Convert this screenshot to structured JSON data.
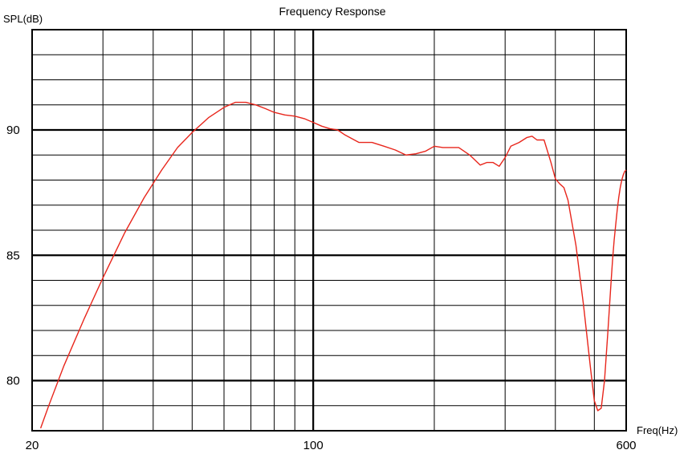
{
  "chart_data": {
    "type": "line",
    "title": "Frequency Response",
    "ylabel": "SPL(dB)",
    "xlabel": "Freq(Hz)",
    "x_scale": "log",
    "xlim": [
      20,
      600
    ],
    "ylim": [
      78,
      94
    ],
    "x_tick_labels": [
      {
        "value": 20,
        "label": "20"
      },
      {
        "value": 100,
        "label": "100"
      },
      {
        "value": 600,
        "label": "600"
      }
    ],
    "y_tick_labels": [
      {
        "value": 80,
        "label": "80"
      },
      {
        "value": 85,
        "label": "85"
      },
      {
        "value": 90,
        "label": "90"
      }
    ],
    "x_major_gridlines": [
      100
    ],
    "x_minor_gridlines": [
      30,
      40,
      50,
      60,
      70,
      80,
      90,
      200,
      300,
      400,
      500
    ],
    "y_major_gridlines": [
      80,
      85,
      90
    ],
    "y_minor_gridlines": [
      79,
      81,
      82,
      83,
      84,
      86,
      87,
      88,
      89,
      91,
      92,
      93
    ],
    "grid": true,
    "legend": "none",
    "colors": {
      "line": "#e8261c",
      "grid": "#000000"
    },
    "series": [
      {
        "x": [
          21,
          22,
          24,
          27,
          30,
          34,
          38,
          42,
          46,
          50,
          55,
          60,
          64,
          68,
          72,
          76,
          80,
          85,
          90,
          95,
          100,
          105,
          110,
          115,
          120,
          130,
          140,
          150,
          160,
          170,
          180,
          190,
          200,
          210,
          220,
          230,
          245,
          260,
          270,
          280,
          290,
          300,
          310,
          325,
          340,
          350,
          360,
          375,
          390,
          400,
          410,
          420,
          430,
          450,
          470,
          490,
          500,
          510,
          520,
          530,
          540,
          550,
          555,
          560,
          565,
          570,
          575,
          580,
          585,
          590,
          595,
          600
        ],
        "y": [
          78.1,
          79.0,
          80.6,
          82.5,
          84.1,
          85.9,
          87.3,
          88.4,
          89.3,
          89.9,
          90.5,
          90.9,
          91.1,
          91.1,
          91.0,
          90.85,
          90.7,
          90.6,
          90.55,
          90.45,
          90.3,
          90.15,
          90.05,
          90.0,
          89.8,
          89.5,
          89.5,
          89.35,
          89.2,
          89.0,
          89.05,
          89.15,
          89.35,
          89.3,
          89.3,
          89.3,
          89.0,
          88.6,
          88.7,
          88.7,
          88.55,
          88.9,
          89.35,
          89.5,
          89.7,
          89.75,
          89.6,
          89.6,
          88.7,
          88.05,
          87.85,
          87.7,
          87.2,
          85.4,
          83.0,
          80.4,
          79.2,
          78.8,
          78.9,
          80.0,
          81.9,
          83.9,
          84.8,
          85.6,
          86.2,
          86.8,
          87.3,
          87.7,
          88.0,
          88.2,
          88.35,
          88.4
        ]
      }
    ]
  }
}
